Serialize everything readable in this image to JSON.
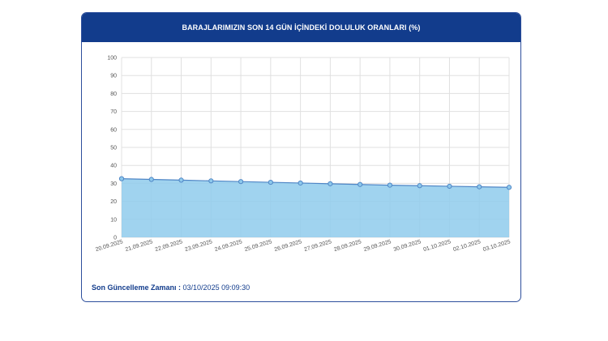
{
  "header": {
    "title": "BARAJLARIMIZIN SON 14 GÜN İÇİNDEKİ DOLULUK ORANLARI (%)"
  },
  "footer": {
    "label": "Son Güncelleme Zamanı",
    "separator": " : ",
    "value": "03/10/2025 09:09:30"
  },
  "colors": {
    "header_bg": "#123c8c",
    "line": "#4f86c6",
    "area_fill": "#8fcbec",
    "marker_fill": "#8ec9ec",
    "grid": "#e0e0e0",
    "label_text": "#123c8c"
  },
  "chart_data": {
    "type": "area",
    "title": "BARAJLARIMIZIN SON 14 GÜN İÇİNDEKİ DOLULUK ORANLARI (%)",
    "xlabel": "",
    "ylabel": "",
    "categories": [
      "20.09.2025",
      "21.09.2025",
      "22.09.2025",
      "23.09.2025",
      "24.09.2025",
      "25.09.2025",
      "26.09.2025",
      "27.09.2025",
      "28.09.2025",
      "29.09.2025",
      "30.09.2025",
      "01.10.2025",
      "02.10.2025",
      "03.10.2025"
    ],
    "series": [
      {
        "values": [
          32.6,
          32.2,
          31.8,
          31.4,
          31.0,
          30.6,
          30.2,
          29.8,
          29.4,
          29.0,
          28.7,
          28.4,
          28.1,
          27.8
        ]
      }
    ],
    "ylim": [
      0,
      100
    ],
    "yticks": [
      0,
      10,
      20,
      30,
      40,
      50,
      60,
      70,
      80,
      90,
      100
    ],
    "grid": true,
    "legend": "none"
  }
}
